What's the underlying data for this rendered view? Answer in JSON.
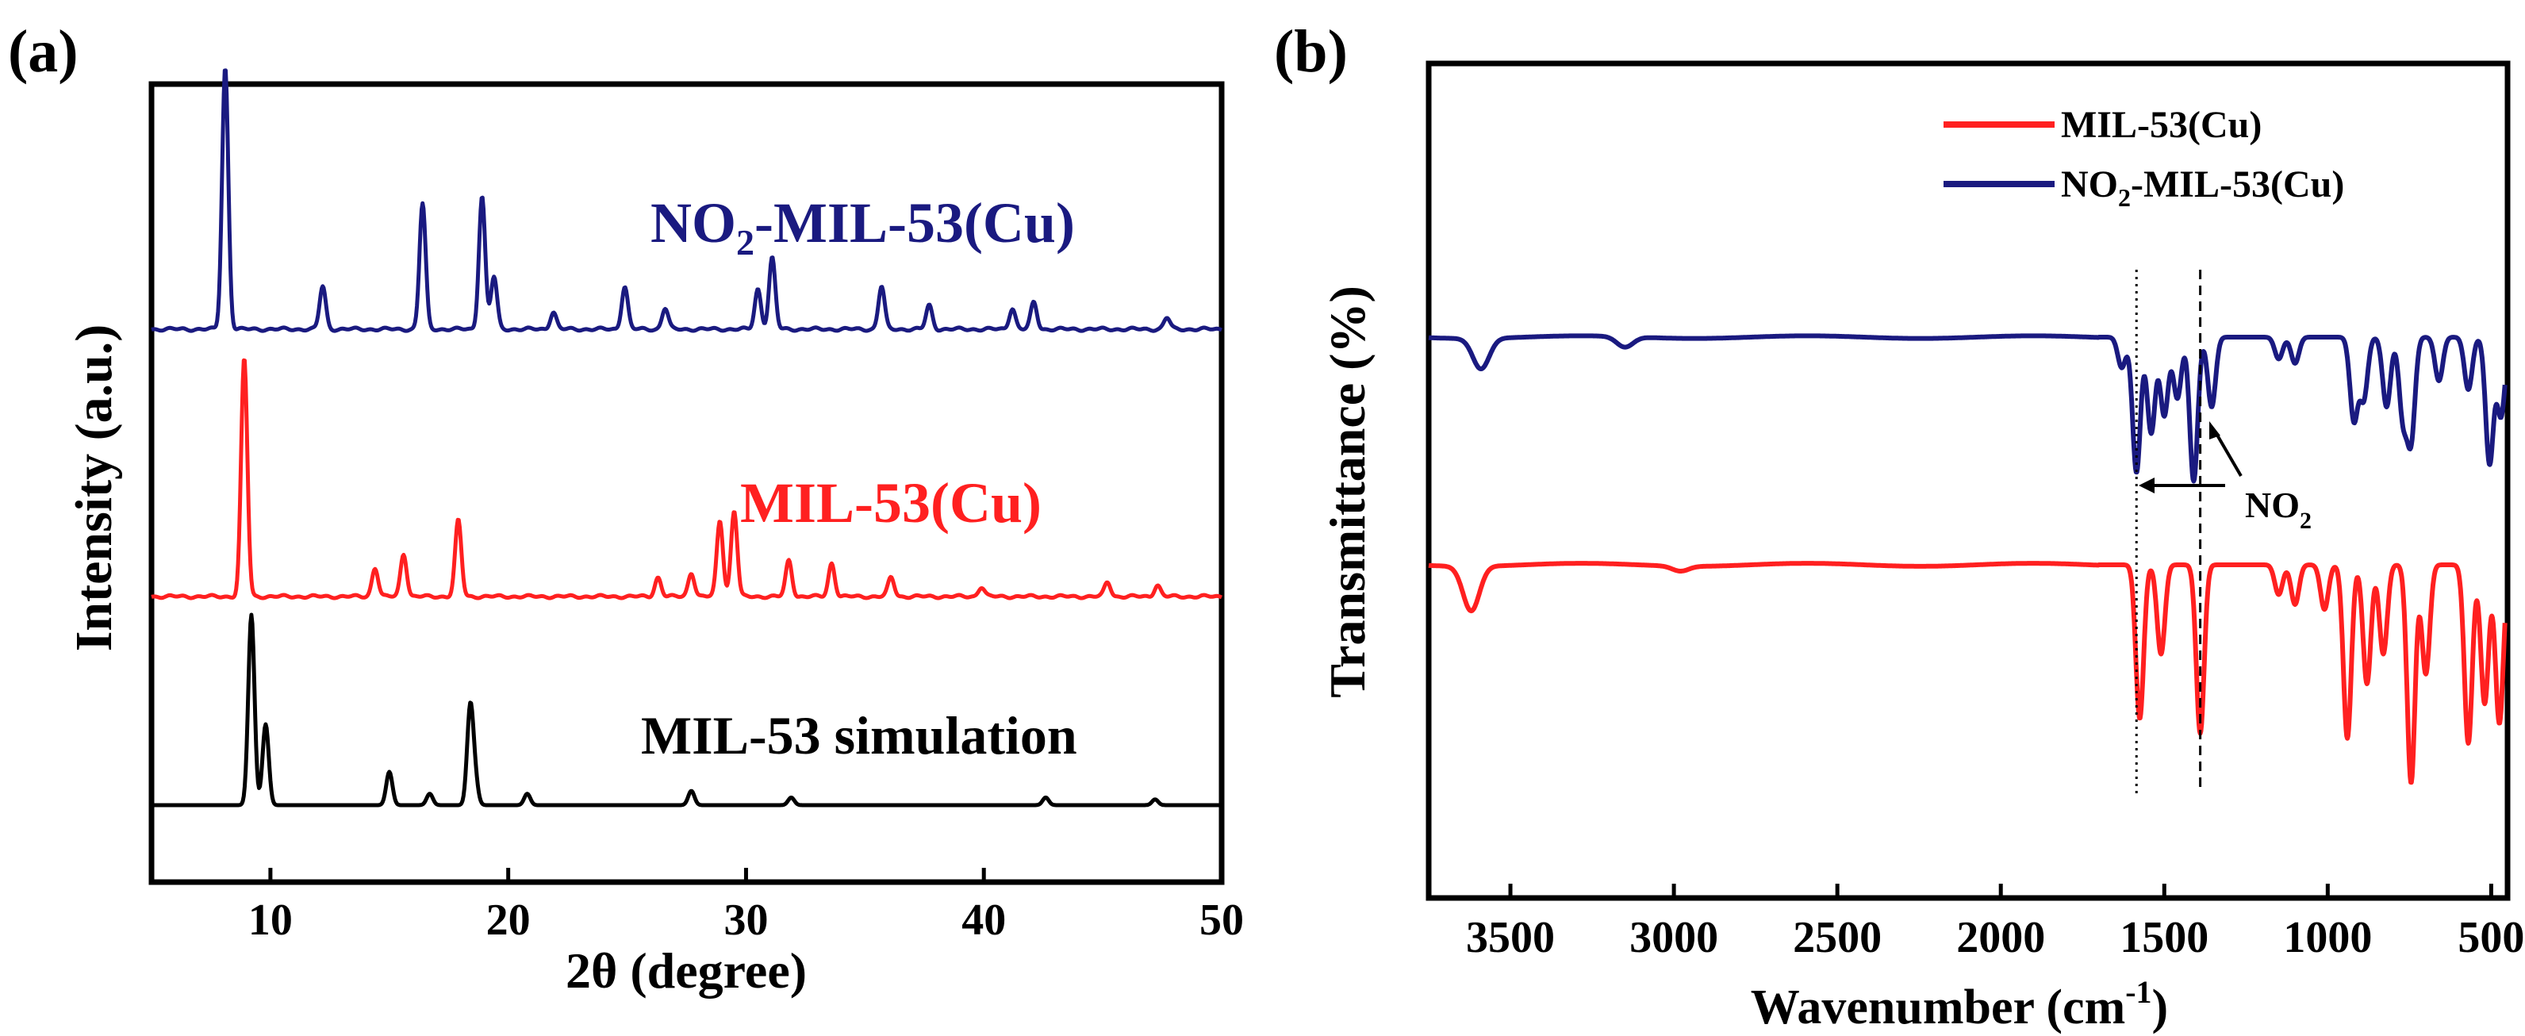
{
  "chart_data": [
    {
      "type": "line",
      "panel_label": "(a)",
      "xlabel": "2θ (degree)",
      "ylabel": "Intensity (a.u.)",
      "xlim": [
        5,
        50
      ],
      "xticks": [
        10,
        20,
        30,
        40,
        50
      ],
      "grid": false,
      "series": [
        {
          "name": "NO2-MIL-53(Cu)",
          "label_main": "NO",
          "label_sub": "2",
          "label_rest": "-MIL-53(Cu)",
          "color": "#1a1a80",
          "baseline": 0.36,
          "peaks": [
            [
              8.1,
              2.75
            ],
            [
              12.2,
              0.45
            ],
            [
              16.4,
              1.32
            ],
            [
              18.9,
              1.4
            ],
            [
              19.4,
              0.55
            ],
            [
              21.9,
              0.18
            ],
            [
              24.9,
              0.45
            ],
            [
              26.6,
              0.22
            ],
            [
              30.5,
              0.42
            ],
            [
              31.1,
              0.75
            ],
            [
              35.7,
              0.45
            ],
            [
              37.7,
              0.25
            ],
            [
              41.2,
              0.22
            ],
            [
              42.1,
              0.28
            ],
            [
              47.7,
              0.12
            ]
          ]
        },
        {
          "name": "MIL-53(Cu)",
          "label": "MIL-53(Cu)",
          "color": "#ff2020",
          "baseline": 0.34,
          "peaks": [
            [
              8.9,
              2.5
            ],
            [
              14.4,
              0.3
            ],
            [
              15.6,
              0.45
            ],
            [
              17.9,
              0.8
            ],
            [
              26.3,
              0.2
            ],
            [
              27.7,
              0.25
            ],
            [
              28.9,
              0.8
            ],
            [
              29.5,
              0.9
            ],
            [
              31.8,
              0.38
            ],
            [
              33.6,
              0.35
            ],
            [
              36.1,
              0.2
            ],
            [
              39.9,
              0.1
            ],
            [
              45.2,
              0.15
            ],
            [
              47.3,
              0.12
            ]
          ]
        },
        {
          "name": "MIL-53 simulation",
          "label": "MIL-53 simulation",
          "color": "#000000",
          "baseline": 0.0,
          "peaks": [
            [
              9.2,
              2.0
            ],
            [
              9.8,
              0.85
            ],
            [
              15.0,
              0.35
            ],
            [
              16.7,
              0.12
            ],
            [
              18.4,
              1.0
            ],
            [
              18.6,
              0.25
            ],
            [
              20.8,
              0.12
            ],
            [
              27.7,
              0.15
            ],
            [
              31.9,
              0.08
            ],
            [
              42.6,
              0.08
            ],
            [
              47.2,
              0.06
            ]
          ]
        }
      ]
    },
    {
      "type": "line",
      "panel_label": "(b)",
      "xlabel": "Wavenumber (cm",
      "xlabel_sup": "-1",
      "xlabel_end": ")",
      "ylabel": "Transmittance (%)",
      "xlim": [
        3750,
        450
      ],
      "xticks": [
        3500,
        3000,
        2500,
        2000,
        1500,
        1000,
        500
      ],
      "grid": false,
      "legend_position": "top-right",
      "reference_lines": [
        1585,
        1390
      ],
      "annotation": {
        "text": "NO",
        "sub": "2"
      },
      "series": [
        {
          "name": "MIL-53(Cu)",
          "legend_label": "MIL-53(Cu)",
          "color": "#ff2020",
          "base": 0.3,
          "dips": [
            [
              3620,
              0.45
            ],
            [
              2980,
              0.05
            ],
            [
              1575,
              1.55
            ],
            [
              1510,
              0.9
            ],
            [
              1390,
              1.7
            ],
            [
              1150,
              0.3
            ],
            [
              1100,
              0.4
            ],
            [
              1010,
              0.45
            ],
            [
              940,
              1.75
            ],
            [
              880,
              1.2
            ],
            [
              830,
              0.9
            ],
            [
              745,
              2.2
            ],
            [
              700,
              1.1
            ],
            [
              570,
              1.8
            ],
            [
              520,
              1.4
            ],
            [
              475,
              1.6
            ]
          ]
        },
        {
          "name": "NO2-MIL-53(Cu)",
          "legend_main": "NO",
          "legend_sub": "2",
          "legend_rest": "-MIL-53(Cu)",
          "color": "#1a1a80",
          "base": 0.3,
          "dips": [
            [
              3590,
              0.35
            ],
            [
              3150,
              0.12
            ],
            [
              1630,
              0.35
            ],
            [
              1585,
              1.55
            ],
            [
              1540,
              1.1
            ],
            [
              1500,
              0.9
            ],
            [
              1460,
              0.7
            ],
            [
              1410,
              1.65
            ],
            [
              1355,
              0.8
            ],
            [
              1150,
              0.25
            ],
            [
              1100,
              0.3
            ],
            [
              920,
              0.95
            ],
            [
              890,
              0.7
            ],
            [
              820,
              0.8
            ],
            [
              770,
              0.9
            ],
            [
              745,
              1.15
            ],
            [
              660,
              0.5
            ],
            [
              570,
              0.6
            ],
            [
              505,
              1.45
            ],
            [
              470,
              0.9
            ]
          ]
        }
      ]
    }
  ]
}
